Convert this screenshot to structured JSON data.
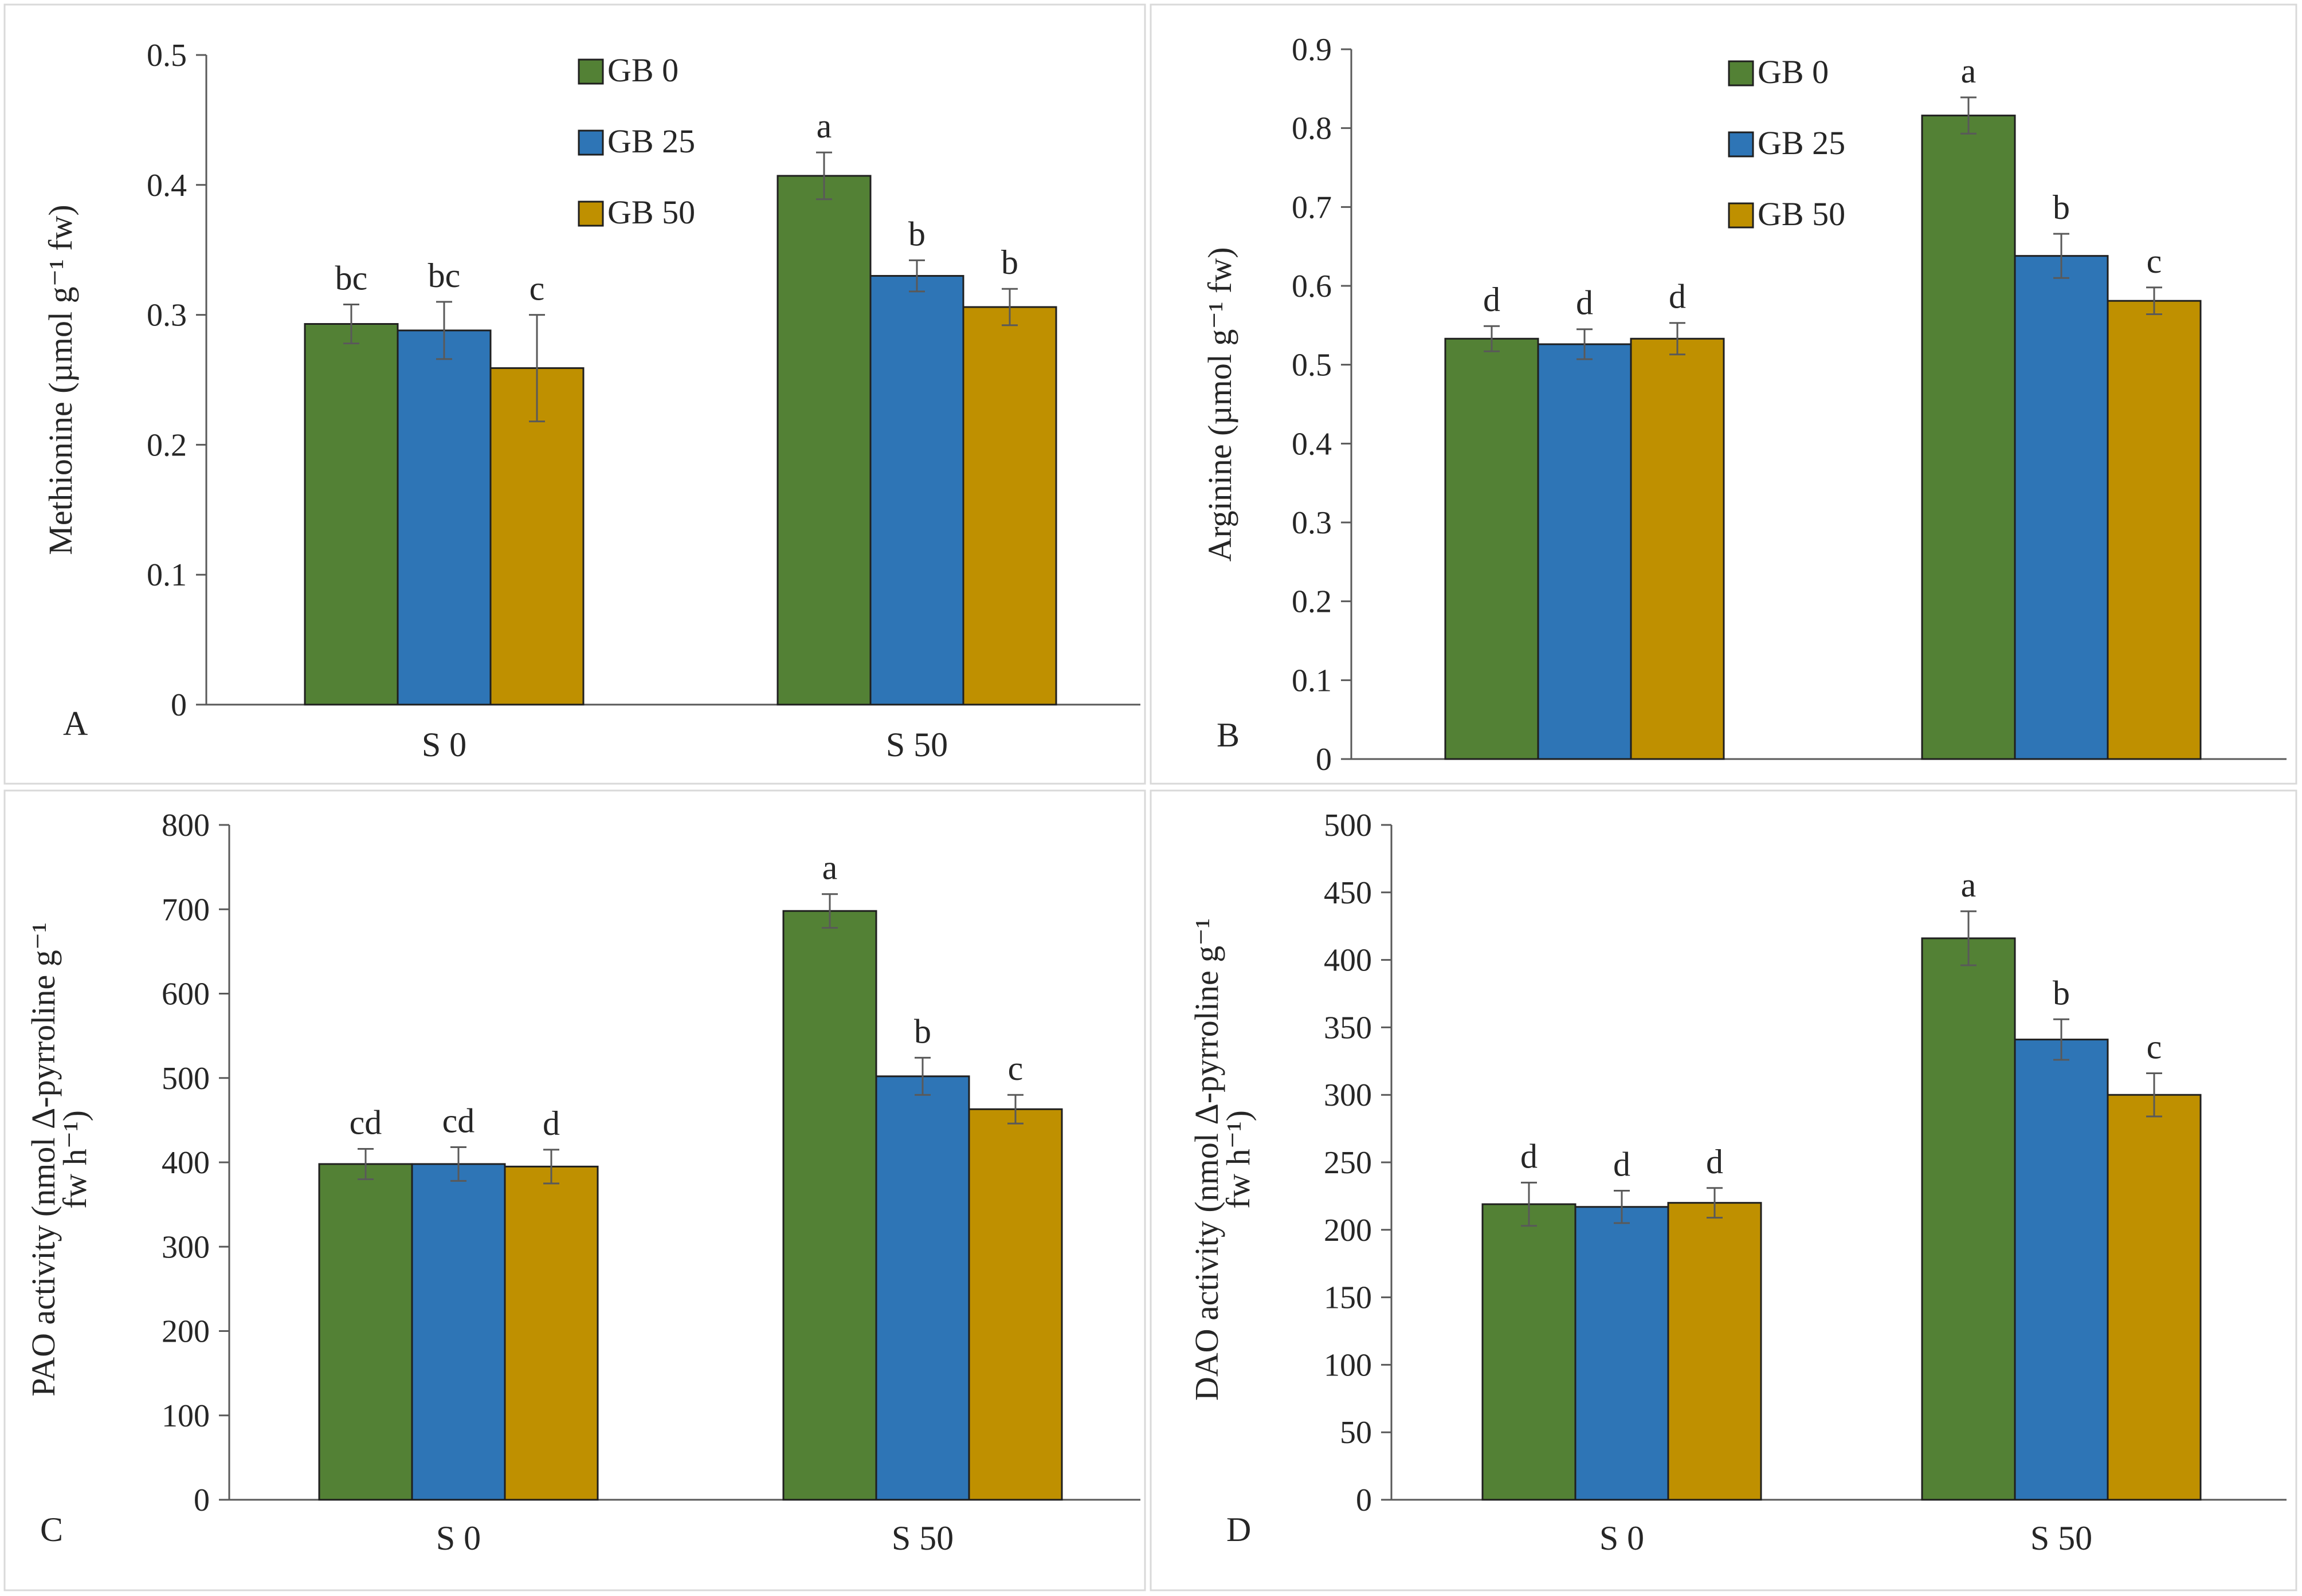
{
  "figure": {
    "series_names": [
      "GB 0",
      "GB 25",
      "GB 50"
    ],
    "colors": {
      "GB 0": "#538135",
      "GB 25": "#2e75b6",
      "GB 50": "#bf9000"
    }
  },
  "chart_data": [
    {
      "type": "bar",
      "panel": "A",
      "title": "",
      "xlabel": "",
      "ylabel": "Methionine (µmol g⁻¹ fw)",
      "ylim": [
        0,
        0.5
      ],
      "yticks": [
        "0",
        "0.1",
        "0.2",
        "0.3",
        "0.4",
        "0.5"
      ],
      "categories": [
        "S 0",
        "S 50"
      ],
      "legend": "top-center",
      "series": [
        {
          "name": "GB 0",
          "values": [
            0.293,
            0.407
          ],
          "errors": [
            0.015,
            0.018
          ],
          "letters": [
            "bc",
            "a"
          ]
        },
        {
          "name": "GB 25",
          "values": [
            0.288,
            0.33
          ],
          "errors": [
            0.022,
            0.012
          ],
          "letters": [
            "bc",
            "b"
          ]
        },
        {
          "name": "GB 50",
          "values": [
            0.259,
            0.306
          ],
          "errors": [
            0.041,
            0.014
          ],
          "letters": [
            "c",
            "b"
          ]
        }
      ]
    },
    {
      "type": "bar",
      "panel": "B",
      "title": "",
      "xlabel": "",
      "ylabel": "Arginine (µmol g⁻¹ fw)",
      "ylim": [
        0,
        0.9
      ],
      "yticks": [
        "0",
        "0.1",
        "0.2",
        "0.3",
        "0.4",
        "0.5",
        "0.6",
        "0.7",
        "0.8",
        "0.9"
      ],
      "categories": [
        "",
        ""
      ],
      "legend": "top-center",
      "series": [
        {
          "name": "GB 0",
          "values": [
            0.533,
            0.816
          ],
          "errors": [
            0.016,
            0.023
          ],
          "letters": [
            "d",
            "a"
          ]
        },
        {
          "name": "GB 25",
          "values": [
            0.526,
            0.638
          ],
          "errors": [
            0.019,
            0.028
          ],
          "letters": [
            "d",
            "b"
          ]
        },
        {
          "name": "GB 50",
          "values": [
            0.533,
            0.581
          ],
          "errors": [
            0.02,
            0.017
          ],
          "letters": [
            "d",
            "c"
          ]
        }
      ]
    },
    {
      "type": "bar",
      "panel": "C",
      "title": "",
      "xlabel": "",
      "ylabel_lines": [
        "PAO activity (nmol Δ-pyrroline g⁻¹",
        "fw h⁻¹)"
      ],
      "ylim": [
        0,
        800
      ],
      "yticks": [
        "0",
        "100",
        "200",
        "300",
        "400",
        "500",
        "600",
        "700",
        "800"
      ],
      "categories": [
        "S 0",
        "S 50"
      ],
      "legend": "none",
      "series": [
        {
          "name": "GB 0",
          "values": [
            398,
            698
          ],
          "errors": [
            18,
            20
          ],
          "letters": [
            "cd",
            "a"
          ]
        },
        {
          "name": "GB 25",
          "values": [
            398,
            502
          ],
          "errors": [
            20,
            22
          ],
          "letters": [
            "cd",
            "b"
          ]
        },
        {
          "name": "GB 50",
          "values": [
            395,
            463
          ],
          "errors": [
            20,
            17
          ],
          "letters": [
            "d",
            "c"
          ]
        }
      ]
    },
    {
      "type": "bar",
      "panel": "D",
      "title": "",
      "xlabel": "",
      "ylabel_lines": [
        "DAO activity (nmol Δ-pyrroline g⁻¹",
        "fw h⁻¹)"
      ],
      "ylim": [
        0,
        500
      ],
      "yticks": [
        "0",
        "50",
        "100",
        "150",
        "200",
        "250",
        "300",
        "350",
        "400",
        "450",
        "500"
      ],
      "categories": [
        "S 0",
        "S 50"
      ],
      "legend": "none",
      "series": [
        {
          "name": "GB 0",
          "values": [
            219,
            416
          ],
          "errors": [
            16,
            20
          ],
          "letters": [
            "d",
            "a"
          ]
        },
        {
          "name": "GB 25",
          "values": [
            217,
            341
          ],
          "errors": [
            12,
            15
          ],
          "letters": [
            "d",
            "b"
          ]
        },
        {
          "name": "GB 50",
          "values": [
            220,
            300
          ],
          "errors": [
            11,
            16
          ],
          "letters": [
            "d",
            "c"
          ]
        }
      ]
    }
  ]
}
